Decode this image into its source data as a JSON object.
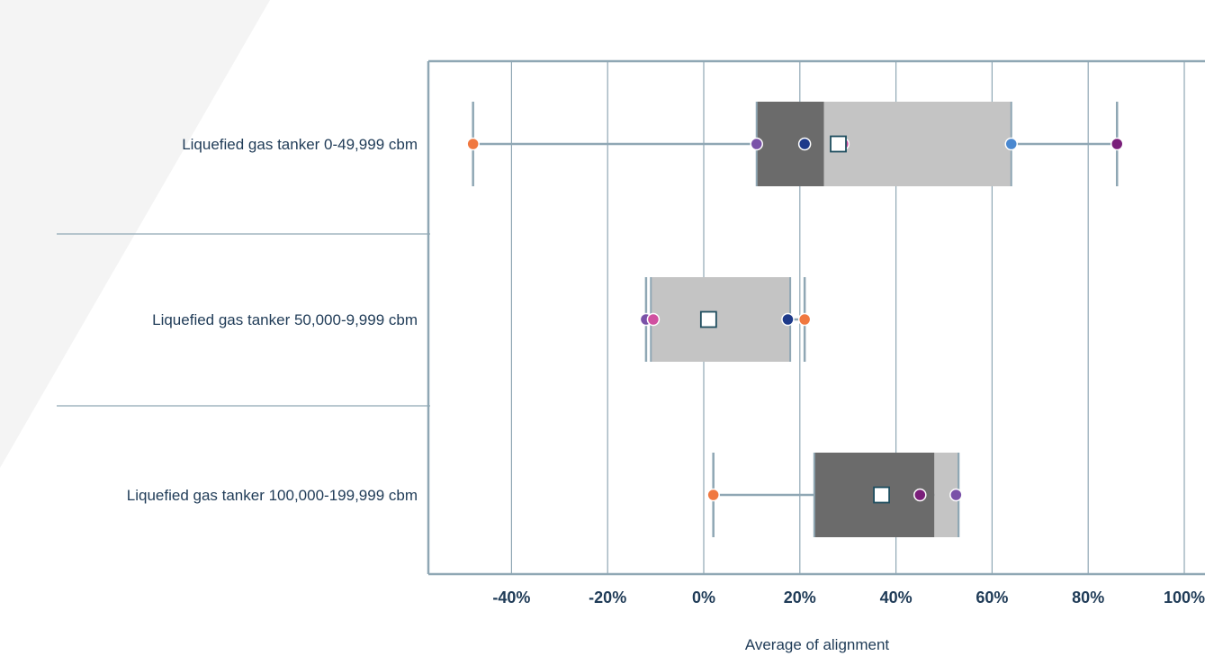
{
  "chart_data": {
    "type": "box",
    "orientation": "horizontal",
    "title": "",
    "xlabel": "Average of alignment",
    "ylabel": "",
    "xlim": [
      -57,
      100
    ],
    "xticks": [
      -40,
      -20,
      0,
      20,
      40,
      60,
      80,
      100
    ],
    "xtick_labels": [
      "-40%",
      "-20%",
      "0%",
      "20%",
      "40%",
      "60%",
      "80%",
      "100%"
    ],
    "grid": true,
    "legend": "none",
    "colors": {
      "box_lower": "#6b6b6b",
      "box_upper": "#c4c4c4",
      "whisker": "#8fa7b4",
      "frame": "#8fa7b4",
      "mean_marker_stroke": "#1f4e5f",
      "text": "#1f3b57"
    },
    "categories": [
      "Liquefied gas tanker 0-49,999 cbm",
      "Liquefied gas tanker 50,000-9,999 cbm",
      "Liquefied gas tanker 100,000-199,999 cbm"
    ],
    "boxes": [
      {
        "category": "Liquefied gas tanker 0-49,999 cbm",
        "min": -48,
        "q1": 11,
        "median": 25,
        "q3": 64,
        "max": 86,
        "mean": 28,
        "points": [
          {
            "value": -48,
            "color": "#f07840"
          },
          {
            "value": 11,
            "color": "#7a52a8"
          },
          {
            "value": 21,
            "color": "#1e3a8a"
          },
          {
            "value": 29,
            "color": "#d050a0"
          },
          {
            "value": 64,
            "color": "#4a88d0"
          },
          {
            "value": 86,
            "color": "#7a1f7a"
          }
        ]
      },
      {
        "category": "Liquefied gas tanker 50,000-9,999 cbm",
        "min": -12,
        "q1": -11,
        "median": 18,
        "q3": 18,
        "max": 21,
        "mean": 1,
        "points": [
          {
            "value": -12,
            "color": "#7a52a8"
          },
          {
            "value": -10.5,
            "color": "#d050a0"
          },
          {
            "value": 17.5,
            "color": "#1e3a8a"
          },
          {
            "value": 21,
            "color": "#f07840"
          }
        ]
      },
      {
        "category": "Liquefied gas tanker 100,000-199,999 cbm",
        "min": 2,
        "q1": 23,
        "median": 48,
        "q3": 53,
        "max": 53,
        "mean": 37,
        "points": [
          {
            "value": 2,
            "color": "#f07840"
          },
          {
            "value": 45,
            "color": "#7a1f7a"
          },
          {
            "value": 52.5,
            "color": "#7a52a8"
          }
        ]
      }
    ]
  }
}
